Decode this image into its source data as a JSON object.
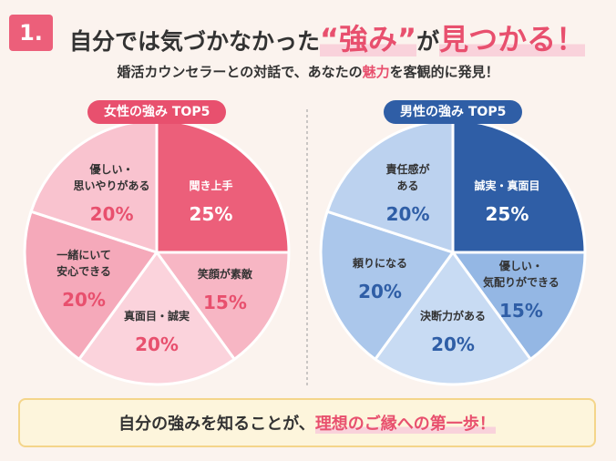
{
  "header": {
    "number": "1.",
    "title_parts": [
      "自分では気づかなかった",
      "“強み”",
      "が",
      "見つかる！"
    ],
    "subtitle_parts": [
      "婚活カウンセラーとの対話で、あなたの",
      "魅力",
      "を客観的に発見！"
    ]
  },
  "chart_data": [
    {
      "type": "pie",
      "title": "女性の強み TOP5",
      "categories": [
        "聞き上手",
        "笑顔が素敵",
        "真面目・誠実",
        "一緒にいて\n安心できる",
        "優しい・\n思いやりがある"
      ],
      "values": [
        25,
        15,
        20,
        20,
        20
      ],
      "value_labels": [
        "25%",
        "15%",
        "20%",
        "20%",
        "20%"
      ],
      "colors": [
        "#ec5f7a",
        "#f7b6c4",
        "#fbd3dc",
        "#f5a9ba",
        "#f9c3cf"
      ],
      "accent": "#e8506e"
    },
    {
      "type": "pie",
      "title": "男性の強み TOP5",
      "categories": [
        "誠実・真面目",
        "優しい・\n気配りができる",
        "決断力がある",
        "頼りになる",
        "責任感が\nある"
      ],
      "values": [
        25,
        15,
        20,
        20,
        20
      ],
      "value_labels": [
        "25%",
        "15%",
        "20%",
        "20%",
        "20%"
      ],
      "colors": [
        "#2f5ea6",
        "#94b7e4",
        "#c8dbf3",
        "#abc7eb",
        "#bcd2ef"
      ],
      "accent": "#2f5ea6"
    }
  ],
  "footer": {
    "parts": [
      "自分の強みを知ることが、",
      "理想のご縁への第一歩！"
    ]
  }
}
